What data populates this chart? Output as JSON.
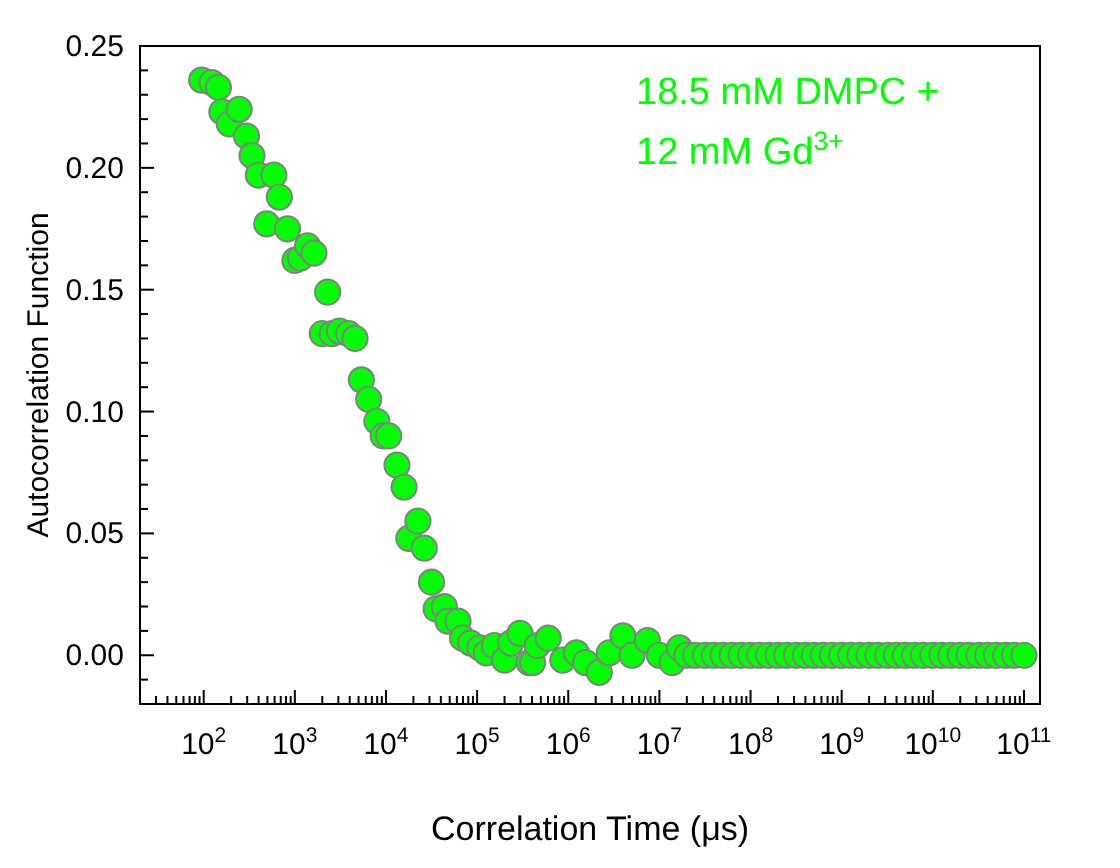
{
  "chart_data": {
    "type": "scatter",
    "xlabel": "Correlation Time (μs)",
    "ylabel": "Autocorrelation Function",
    "annotations": [
      "18.5 mM DMPC +",
      "12 mM Gd$^{3+}$"
    ],
    "log": "x",
    "grid": false,
    "marker": "circle",
    "xlim": [
      20,
      150000000000.0
    ],
    "ylim": [
      -0.02,
      0.25
    ],
    "xticks": [
      {
        "value": 20,
        "label": null
      },
      {
        "value": 30,
        "label": null
      },
      {
        "value": 40,
        "label": null
      },
      {
        "value": 50,
        "label": null
      },
      {
        "value": 60,
        "label": null
      },
      {
        "value": 70,
        "label": null
      },
      {
        "value": 80,
        "label": null
      },
      {
        "value": 90,
        "label": null
      },
      {
        "value": 100,
        "label": "10$^{2}$"
      },
      {
        "value": 200,
        "label": null
      },
      {
        "value": 300,
        "label": null
      },
      {
        "value": 400,
        "label": null
      },
      {
        "value": 500,
        "label": null
      },
      {
        "value": 600,
        "label": null
      },
      {
        "value": 700,
        "label": null
      },
      {
        "value": 800,
        "label": null
      },
      {
        "value": 900,
        "label": null
      },
      {
        "value": 1000,
        "label": "10$^{3}$"
      },
      {
        "value": 2000,
        "label": null
      },
      {
        "value": 3000,
        "label": null
      },
      {
        "value": 4000,
        "label": null
      },
      {
        "value": 5000,
        "label": null
      },
      {
        "value": 6000,
        "label": null
      },
      {
        "value": 7000,
        "label": null
      },
      {
        "value": 8000,
        "label": null
      },
      {
        "value": 9000,
        "label": null
      },
      {
        "value": 10000,
        "label": "10$^{4}$"
      },
      {
        "value": 20000,
        "label": null
      },
      {
        "value": 30000,
        "label": null
      },
      {
        "value": 40000,
        "label": null
      },
      {
        "value": 50000,
        "label": null
      },
      {
        "value": 60000,
        "label": null
      },
      {
        "value": 70000,
        "label": null
      },
      {
        "value": 80000,
        "label": null
      },
      {
        "value": 90000,
        "label": null
      },
      {
        "value": 100000.0,
        "label": "10$^{5}$"
      },
      {
        "value": 200000.0,
        "label": null
      },
      {
        "value": 300000.0,
        "label": null
      },
      {
        "value": 400000.0,
        "label": null
      },
      {
        "value": 500000.0,
        "label": null
      },
      {
        "value": 600000.0,
        "label": null
      },
      {
        "value": 700000.0,
        "label": null
      },
      {
        "value": 800000.0,
        "label": null
      },
      {
        "value": 900000.0,
        "label": null
      },
      {
        "value": 1000000.0,
        "label": "10$^{6}$"
      },
      {
        "value": 2000000.0,
        "label": null
      },
      {
        "value": 3000000.0,
        "label": null
      },
      {
        "value": 4000000.0,
        "label": null
      },
      {
        "value": 5000000.0,
        "label": null
      },
      {
        "value": 6000000.0,
        "label": null
      },
      {
        "value": 7000000.0,
        "label": null
      },
      {
        "value": 8000000.0,
        "label": null
      },
      {
        "value": 9000000.0,
        "label": null
      },
      {
        "value": 10000000.0,
        "label": "10$^{7}$"
      },
      {
        "value": 20000000.0,
        "label": null
      },
      {
        "value": 30000000.0,
        "label": null
      },
      {
        "value": 40000000.0,
        "label": null
      },
      {
        "value": 50000000.0,
        "label": null
      },
      {
        "value": 60000000.0,
        "label": null
      },
      {
        "value": 70000000.0,
        "label": null
      },
      {
        "value": 80000000.0,
        "label": null
      },
      {
        "value": 90000000.0,
        "label": null
      },
      {
        "value": 100000000.0,
        "label": "10$^{8}$"
      },
      {
        "value": 200000000.0,
        "label": null
      },
      {
        "value": 300000000.0,
        "label": null
      },
      {
        "value": 400000000.0,
        "label": null
      },
      {
        "value": 500000000.0,
        "label": null
      },
      {
        "value": 600000000.0,
        "label": null
      },
      {
        "value": 700000000.0,
        "label": null
      },
      {
        "value": 800000000.0,
        "label": null
      },
      {
        "value": 900000000.0,
        "label": null
      },
      {
        "value": 1000000000.0,
        "label": "10$^{9}$"
      },
      {
        "value": 2000000000.0,
        "label": null
      },
      {
        "value": 3000000000.0,
        "label": null
      },
      {
        "value": 4000000000.0,
        "label": null
      },
      {
        "value": 5000000000.0,
        "label": null
      },
      {
        "value": 6000000000.0,
        "label": null
      },
      {
        "value": 7000000000.0,
        "label": null
      },
      {
        "value": 8000000000.0,
        "label": null
      },
      {
        "value": 9000000000.0,
        "label": null
      },
      {
        "value": 10000000000.0,
        "label": "10$^{10}$"
      },
      {
        "value": 20000000000.0,
        "label": null
      },
      {
        "value": 30000000000.0,
        "label": null
      },
      {
        "value": 40000000000.0,
        "label": null
      },
      {
        "value": 50000000000.0,
        "label": null
      },
      {
        "value": 60000000000.0,
        "label": null
      },
      {
        "value": 70000000000.0,
        "label": null
      },
      {
        "value": 80000000000.0,
        "label": null
      },
      {
        "value": 90000000000.0,
        "label": null
      },
      {
        "value": 100000000000.0,
        "label": "10$^{11}$"
      }
    ],
    "yticks": [
      {
        "value": -0.01,
        "label": null
      },
      {
        "value": 0,
        "label": "0.00"
      },
      {
        "value": 0.01,
        "label": null
      },
      {
        "value": 0.02,
        "label": null
      },
      {
        "value": 0.03,
        "label": null
      },
      {
        "value": 0.04,
        "label": null
      },
      {
        "value": 0.05,
        "label": "0.05"
      },
      {
        "value": 0.06,
        "label": null
      },
      {
        "value": 0.07,
        "label": null
      },
      {
        "value": 0.08,
        "label": null
      },
      {
        "value": 0.09,
        "label": null
      },
      {
        "value": 0.1,
        "label": "0.10"
      },
      {
        "value": 0.11,
        "label": null
      },
      {
        "value": 0.12,
        "label": null
      },
      {
        "value": 0.13,
        "label": null
      },
      {
        "value": 0.14,
        "label": null
      },
      {
        "value": 0.15,
        "label": "0.15"
      },
      {
        "value": 0.16,
        "label": null
      },
      {
        "value": 0.17,
        "label": null
      },
      {
        "value": 0.18,
        "label": null
      },
      {
        "value": 0.19,
        "label": null
      },
      {
        "value": 0.2,
        "label": "0.20"
      },
      {
        "value": 0.21,
        "label": null
      },
      {
        "value": 0.22,
        "label": null
      },
      {
        "value": 0.23,
        "label": null
      },
      {
        "value": 0.24,
        "label": null
      },
      {
        "value": 0.25,
        "label": "0.25"
      }
    ],
    "series": [
      {
        "color": "#00ff00",
        "x": [
          95,
          123,
          145,
          158,
          191,
          245,
          295,
          339,
          398,
          490,
          589,
          676,
          832,
          1000,
          1150,
          1380,
          1620,
          2000,
          2290,
          2570,
          3090,
          3890,
          4570,
          5370,
          6460,
          7940,
          9330,
          10700,
          13200,
          15800,
          17800,
          22400,
          26300,
          31600,
          35500,
          43700,
          47900,
          61700,
          69200,
          85100,
          107000,
          126000,
          155000,
          200000,
          234000,
          295000,
          372000,
          407000,
          457000,
          603000,
          871000,
          1230000,
          1550000,
          2190000,
          2820000,
          3980000,
          5010000,
          7410000,
          10000000.0,
          13800000.0,
          16600000.0,
          20000000.0,
          25000000.0,
          32000000.0,
          40000000.0,
          50000000.0,
          63000000.0,
          79000000.0,
          100000000.0,
          126000000.0,
          158000000.0,
          200000000.0,
          250000000.0,
          320000000.0,
          400000000.0,
          500000000.0,
          630000000.0,
          790000000.0,
          1000000000.0,
          1260000000.0,
          1580000000.0,
          2000000000.0,
          2500000000.0,
          3200000000.0,
          4000000000.0,
          5000000000.0,
          6300000000.0,
          7900000000.0,
          10000000000.0,
          12600000000.0,
          15800000000.0,
          20000000000.0,
          25000000000.0,
          32000000000.0,
          40000000000.0,
          50000000000.0,
          63000000000.0,
          79000000000.0,
          100000000000.0
        ],
        "values": [
          0.236,
          0.235,
          0.233,
          0.223,
          0.218,
          0.224,
          0.213,
          0.205,
          0.197,
          0.177,
          0.197,
          0.188,
          0.175,
          0.162,
          0.163,
          0.168,
          0.165,
          0.132,
          0.149,
          0.132,
          0.133,
          0.132,
          0.13,
          0.113,
          0.105,
          0.096,
          0.09,
          0.09,
          0.078,
          0.069,
          0.048,
          0.055,
          0.044,
          0.03,
          0.019,
          0.02,
          0.014,
          0.014,
          0.007,
          0.005,
          0.003,
          0.001,
          0.004,
          -0.002,
          0.005,
          0.009,
          -0.003,
          -0.003,
          0.004,
          0.007,
          -0.002,
          0.001,
          -0.003,
          -0.007,
          0.001,
          0.008,
          0.0,
          0.006,
          0.0,
          -0.003,
          0.003,
          0,
          0,
          0,
          0,
          0,
          0,
          0,
          0,
          0,
          0,
          0,
          0,
          0,
          0,
          0,
          0,
          0,
          0,
          0,
          0,
          0,
          0,
          0,
          0,
          0,
          0,
          0,
          0,
          0,
          0,
          0,
          0,
          0,
          0,
          0,
          0,
          0,
          0
        ]
      }
    ]
  }
}
